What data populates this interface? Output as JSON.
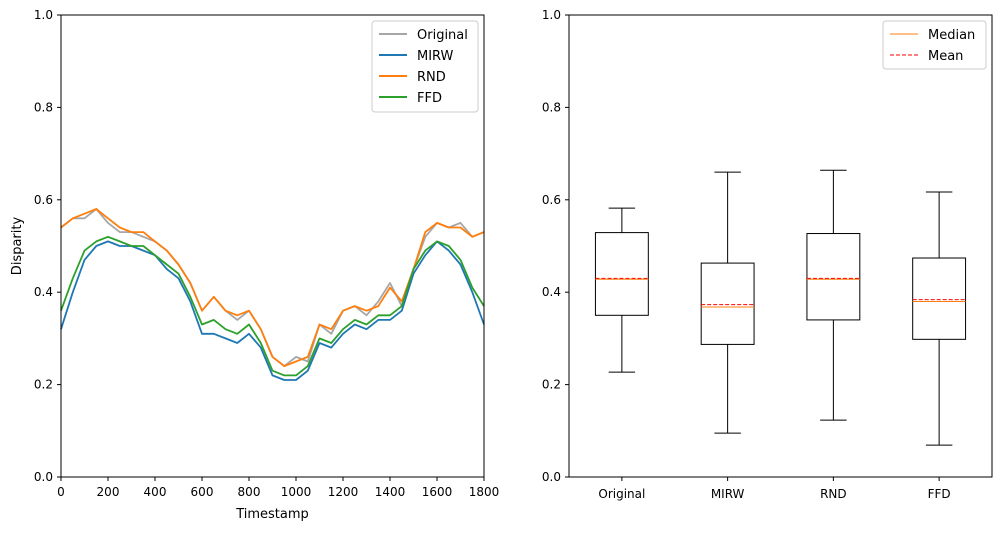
{
  "chart_data": [
    {
      "type": "line",
      "title": "",
      "xlabel": "Timestamp",
      "ylabel": "Disparity",
      "xlim": [
        0,
        1800
      ],
      "ylim": [
        0,
        1
      ],
      "xticks": [
        "0",
        "200",
        "400",
        "600",
        "800",
        "1000",
        "1200",
        "1400",
        "1600",
        "1800"
      ],
      "yticks": [
        "0.0",
        "0.2",
        "0.4",
        "0.6",
        "0.8",
        "1.0"
      ],
      "grid": false,
      "legend_position": "top-right",
      "x": [
        0,
        50,
        100,
        150,
        200,
        250,
        300,
        350,
        400,
        450,
        500,
        550,
        600,
        650,
        700,
        750,
        800,
        850,
        900,
        950,
        1000,
        1050,
        1100,
        1150,
        1200,
        1250,
        1300,
        1350,
        1400,
        1450,
        1500,
        1550,
        1600,
        1650,
        1700,
        1750,
        1800
      ],
      "series": [
        {
          "name": "Original",
          "color": "#a6a6a6",
          "values": [
            0.54,
            0.56,
            0.56,
            0.58,
            0.55,
            0.53,
            0.53,
            0.52,
            0.51,
            0.49,
            0.46,
            0.42,
            0.36,
            0.39,
            0.36,
            0.34,
            0.36,
            0.32,
            0.26,
            0.24,
            0.26,
            0.25,
            0.33,
            0.31,
            0.36,
            0.37,
            0.35,
            0.38,
            0.42,
            0.37,
            0.45,
            0.52,
            0.55,
            0.54,
            0.55,
            0.52,
            0.53
          ]
        },
        {
          "name": "MIRW",
          "color": "#1f77b4",
          "values": [
            0.32,
            0.4,
            0.47,
            0.5,
            0.51,
            0.5,
            0.5,
            0.49,
            0.48,
            0.45,
            0.43,
            0.38,
            0.31,
            0.31,
            0.3,
            0.29,
            0.31,
            0.28,
            0.22,
            0.21,
            0.21,
            0.23,
            0.29,
            0.28,
            0.31,
            0.33,
            0.32,
            0.34,
            0.34,
            0.36,
            0.44,
            0.48,
            0.51,
            0.49,
            0.46,
            0.4,
            0.33
          ]
        },
        {
          "name": "RND",
          "color": "#ff7f0e",
          "values": [
            0.54,
            0.56,
            0.57,
            0.58,
            0.56,
            0.54,
            0.53,
            0.53,
            0.51,
            0.49,
            0.46,
            0.42,
            0.36,
            0.39,
            0.36,
            0.35,
            0.36,
            0.32,
            0.26,
            0.24,
            0.25,
            0.26,
            0.33,
            0.32,
            0.36,
            0.37,
            0.36,
            0.37,
            0.41,
            0.38,
            0.45,
            0.53,
            0.55,
            0.54,
            0.54,
            0.52,
            0.53
          ]
        },
        {
          "name": "FFD",
          "color": "#2ca02c",
          "values": [
            0.36,
            0.43,
            0.49,
            0.51,
            0.52,
            0.51,
            0.5,
            0.5,
            0.48,
            0.46,
            0.44,
            0.39,
            0.33,
            0.34,
            0.32,
            0.31,
            0.33,
            0.29,
            0.23,
            0.22,
            0.22,
            0.24,
            0.3,
            0.29,
            0.32,
            0.34,
            0.33,
            0.35,
            0.35,
            0.37,
            0.45,
            0.49,
            0.51,
            0.5,
            0.47,
            0.41,
            0.37
          ]
        }
      ]
    },
    {
      "type": "box",
      "title": "",
      "xlabel": "",
      "ylabel": "",
      "ylim": [
        0,
        1
      ],
      "yticks": [
        "0.0",
        "0.2",
        "0.4",
        "0.6",
        "0.8",
        "1.0"
      ],
      "grid": false,
      "legend_position": "top-right",
      "legend": [
        {
          "name": "Median",
          "color": "#ff7f0e",
          "style": "solid"
        },
        {
          "name": "Mean",
          "color": "#ff0000",
          "style": "dashed"
        }
      ],
      "categories": [
        "Original",
        "MIRW",
        "RND",
        "FFD"
      ],
      "boxes": [
        {
          "whisker_low": 0.227,
          "q1": 0.35,
          "median": 0.428,
          "mean": 0.43,
          "q3": 0.529,
          "whisker_high": 0.582
        },
        {
          "whisker_low": 0.095,
          "q1": 0.287,
          "median": 0.368,
          "mean": 0.373,
          "q3": 0.463,
          "whisker_high": 0.66
        },
        {
          "whisker_low": 0.123,
          "q1": 0.34,
          "median": 0.428,
          "mean": 0.43,
          "q3": 0.527,
          "whisker_high": 0.664
        },
        {
          "whisker_low": 0.069,
          "q1": 0.298,
          "median": 0.38,
          "mean": 0.384,
          "q3": 0.474,
          "whisker_high": 0.617
        }
      ]
    }
  ]
}
